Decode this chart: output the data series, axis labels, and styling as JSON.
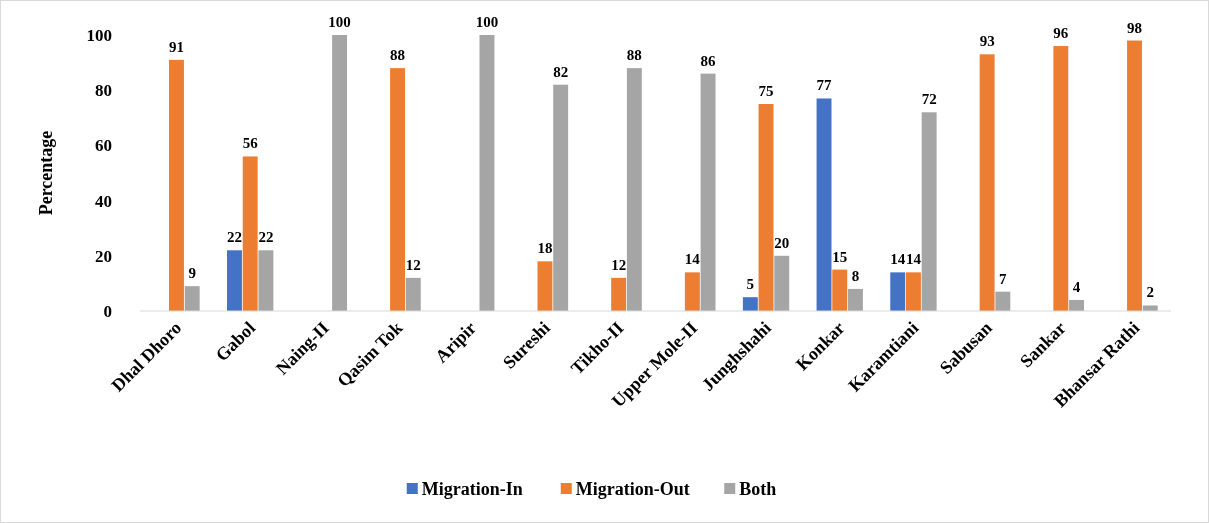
{
  "chart_data": {
    "type": "bar",
    "ylabel": "Percentage",
    "categories": [
      "Dhal Dhoro",
      "Gabol",
      "Naing-II",
      "Qasim Tok",
      "Aripir",
      "Sureshi",
      "Tikho-II",
      "Upper Mole-II",
      "Junghshahi",
      "Konkar",
      "Karamtiani",
      "Sabusan",
      "Sankar",
      "Bhansar Rathi"
    ],
    "series": [
      {
        "name": "Migration-In",
        "color": "#4472c4",
        "values": [
          0,
          22,
          0,
          0,
          0,
          0,
          0,
          0,
          5,
          77,
          14,
          0,
          0,
          0
        ],
        "value_labels": [
          null,
          "22",
          null,
          null,
          null,
          null,
          null,
          null,
          "5",
          "77",
          "14",
          null,
          null,
          null
        ]
      },
      {
        "name": "Migration-Out",
        "color": "#ed7d31",
        "values": [
          91,
          56,
          0,
          88,
          0,
          18,
          12,
          14,
          75,
          15,
          14,
          93,
          96,
          98
        ],
        "value_labels": [
          "91",
          "56",
          null,
          "88",
          null,
          "18",
          "12",
          "14",
          "75",
          "15",
          "14",
          "93",
          "96",
          "98"
        ]
      },
      {
        "name": "Both",
        "color": "#a5a5a5",
        "values": [
          9,
          22,
          100,
          12,
          100,
          82,
          88,
          86,
          20,
          8,
          72,
          7,
          4,
          2
        ],
        "value_labels": [
          "9",
          "22",
          "100",
          "12",
          "100",
          "82",
          "88",
          "86",
          "20",
          "8",
          "72",
          "7",
          "4",
          "2"
        ]
      }
    ],
    "ylim": [
      0,
      100
    ],
    "yticks": [
      0,
      20,
      40,
      60,
      80,
      100
    ],
    "grid": false,
    "legend": "bottom"
  }
}
